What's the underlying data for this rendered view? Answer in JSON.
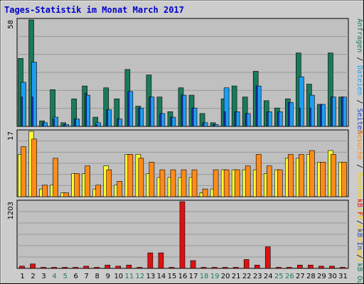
{
  "title": "Tages-Statistik im Monat March 2017",
  "colors": {
    "background": "#cccccc",
    "plot_bg": "#c0c0c0",
    "grid": "#999999",
    "title": "#0000cc",
    "anfragen": "#1a7a5a",
    "dateien": "#1e9df0",
    "seiten": "#1a3fd0",
    "rechner": "#ffff33",
    "besuche": "#ff8c1a",
    "kb_in": "#2244cc",
    "kb_f": "#dd1111",
    "weekday_label": "#000000",
    "weekend_label": "#1a7a5a"
  },
  "legends": {
    "top": [
      {
        "text": "Anfragen",
        "color": "#1a7a5a"
      },
      {
        "text": " / ",
        "color": "#000000"
      },
      {
        "text": "Dateien",
        "color": "#1e9df0"
      },
      {
        "text": " / ",
        "color": "#000000"
      },
      {
        "text": "Seiten",
        "color": "#1a3fd0"
      }
    ],
    "middle": [
      {
        "text": "Besuche",
        "color": "#ff8c1a"
      },
      {
        "text": " / ",
        "color": "#000000"
      },
      {
        "text": "Rechner (IP-Adressen)",
        "color": "#ffcc00"
      }
    ],
    "bottom": [
      {
        "text": "kB F",
        "color": "#dd1111"
      },
      {
        "text": " / ",
        "color": "#000000"
      },
      {
        "text": "kB In",
        "color": "#2244cc"
      },
      {
        "text": " / ",
        "color": "#000000"
      },
      {
        "text": "kB Out",
        "color": "#1a7a5a"
      }
    ]
  },
  "chart_data": [
    {
      "type": "bar",
      "panel": "top",
      "ymax_label": "58",
      "ylim": [
        0,
        58
      ],
      "categories": [
        "1",
        "2",
        "3",
        "4",
        "5",
        "6",
        "7",
        "8",
        "9",
        "10",
        "11",
        "12",
        "13",
        "14",
        "15",
        "16",
        "17",
        "18",
        "19",
        "20",
        "21",
        "22",
        "23",
        "24",
        "25",
        "26",
        "27",
        "28",
        "29",
        "30",
        "31"
      ],
      "weekend_days": [
        "4",
        "5",
        "11",
        "12",
        "18",
        "19",
        "25",
        "26"
      ],
      "series": [
        {
          "name": "Anfragen",
          "values": [
            37,
            58,
            3,
            20,
            2,
            15,
            22,
            5,
            21,
            15,
            31,
            11,
            28,
            16,
            8,
            21,
            17,
            7,
            2,
            15,
            22,
            16,
            30,
            14,
            10,
            15,
            40,
            23,
            12,
            40,
            16
          ]
        },
        {
          "name": "Dateien",
          "values": [
            24,
            35,
            2,
            5,
            1,
            4,
            17,
            2,
            9,
            4,
            19,
            10,
            16,
            7,
            5,
            17,
            10,
            2,
            1,
            21,
            8,
            7,
            22,
            8,
            8,
            13,
            27,
            17,
            12,
            16,
            16
          ]
        },
        {
          "name": "Seiten",
          "values": [
            16,
            16,
            2,
            4,
            1,
            4,
            18,
            1,
            9,
            4,
            19,
            10,
            16,
            7,
            5,
            17,
            10,
            2,
            1,
            8,
            8,
            7,
            22,
            8,
            8,
            13,
            10,
            10,
            12,
            16,
            16
          ]
        }
      ]
    },
    {
      "type": "bar",
      "panel": "middle",
      "ymax_label": "17",
      "ylim": [
        0,
        17
      ],
      "categories": [
        "1",
        "2",
        "3",
        "4",
        "5",
        "6",
        "7",
        "8",
        "9",
        "10",
        "11",
        "12",
        "13",
        "14",
        "15",
        "16",
        "17",
        "18",
        "19",
        "20",
        "21",
        "22",
        "23",
        "24",
        "25",
        "26",
        "27",
        "28",
        "29",
        "30",
        "31"
      ],
      "series": [
        {
          "name": "Rechner (IP-Adressen)",
          "values": [
            11,
            17,
            2,
            3,
            1,
            6,
            6,
            2,
            8,
            3,
            11,
            11,
            6,
            5,
            5,
            5,
            5,
            1,
            2,
            7,
            7,
            7,
            7,
            6,
            7,
            10,
            10,
            11,
            9,
            12,
            9
          ]
        },
        {
          "name": "Besuche",
          "values": [
            13,
            15,
            3,
            10,
            1,
            6,
            8,
            3,
            7,
            4,
            11,
            10,
            9,
            7,
            7,
            7,
            7,
            2,
            7,
            7,
            7,
            8,
            11,
            8,
            7,
            11,
            11,
            12,
            9,
            11,
            9
          ]
        }
      ]
    },
    {
      "type": "bar",
      "panel": "bottom",
      "ymax_label": "1203",
      "ylim": [
        0,
        1203
      ],
      "categories": [
        "1",
        "2",
        "3",
        "4",
        "5",
        "6",
        "7",
        "8",
        "9",
        "10",
        "11",
        "12",
        "13",
        "14",
        "15",
        "16",
        "17",
        "18",
        "19",
        "20",
        "21",
        "22",
        "23",
        "24",
        "25",
        "26",
        "27",
        "28",
        "29",
        "30",
        "31"
      ],
      "series": [
        {
          "name": "kB F",
          "values": [
            40,
            80,
            20,
            20,
            20,
            20,
            40,
            20,
            60,
            40,
            60,
            20,
            280,
            280,
            20,
            1203,
            140,
            20,
            20,
            20,
            20,
            160,
            60,
            390,
            20,
            20,
            60,
            60,
            40,
            40,
            20
          ]
        }
      ]
    }
  ]
}
